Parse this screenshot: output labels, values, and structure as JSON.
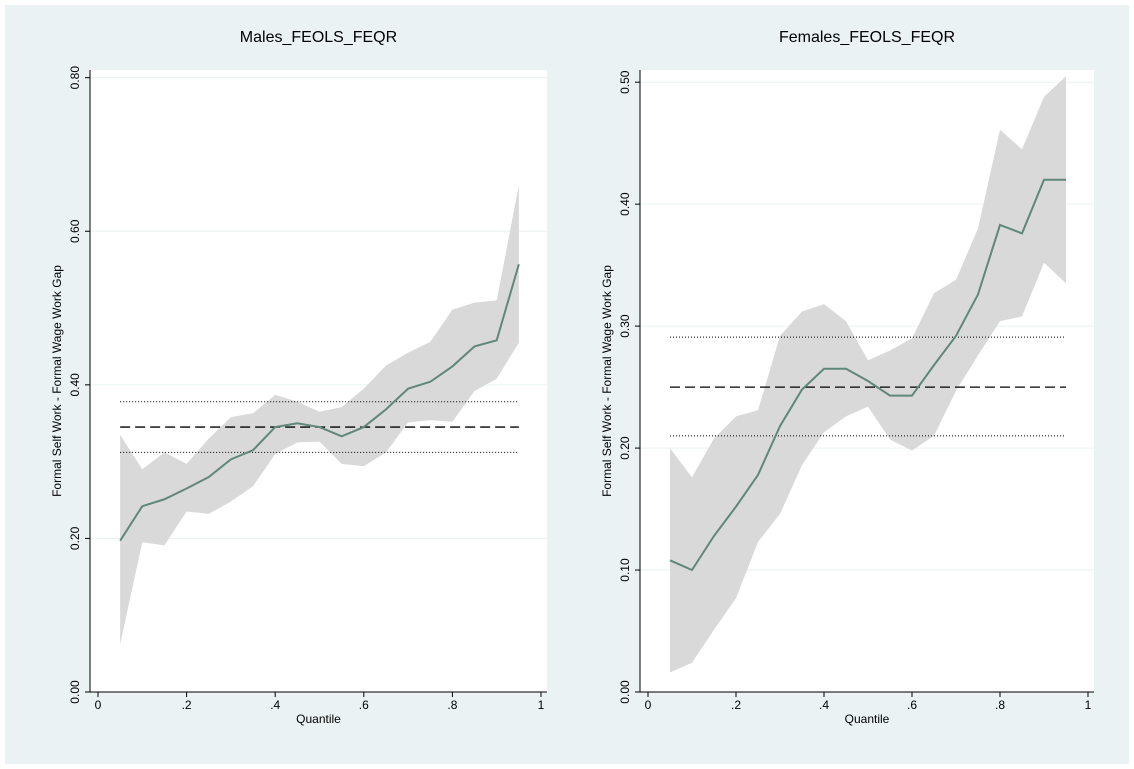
{
  "chart_data": [
    {
      "type": "quantile",
      "title": "Males_FEOLS_FEQR",
      "x_label": "Quantile",
      "y_label": "Formal Self Work - Formal Wage Work Gap",
      "x": [
        0.05,
        0.1,
        0.15,
        0.2,
        0.25,
        0.3,
        0.35,
        0.4,
        0.45,
        0.5,
        0.55,
        0.6,
        0.65,
        0.7,
        0.75,
        0.8,
        0.85,
        0.9,
        0.95
      ],
      "values": [
        0.197,
        0.242,
        0.251,
        0.265,
        0.28,
        0.303,
        0.315,
        0.345,
        0.35,
        0.345,
        0.333,
        0.345,
        0.368,
        0.395,
        0.404,
        0.424,
        0.45,
        0.458,
        0.557
      ],
      "ci_upper": [
        0.335,
        0.29,
        0.312,
        0.297,
        0.33,
        0.358,
        0.363,
        0.387,
        0.378,
        0.365,
        0.371,
        0.395,
        0.425,
        0.442,
        0.456,
        0.498,
        0.507,
        0.51,
        0.66
      ],
      "ci_lower": [
        0.062,
        0.195,
        0.191,
        0.235,
        0.232,
        0.248,
        0.268,
        0.31,
        0.325,
        0.326,
        0.297,
        0.294,
        0.312,
        0.351,
        0.354,
        0.352,
        0.392,
        0.408,
        0.455
      ],
      "ols": 0.345,
      "ols_lower": 0.312,
      "ols_upper": 0.378,
      "color": "#5f8878",
      "band_color": "#d9d9d9",
      "xlim": [
        0,
        1
      ],
      "ylim": [
        0,
        0.81
      ],
      "xticks": [
        0,
        {
          "value": 0.2,
          "label": ".2"
        },
        {
          "value": 0.4,
          "label": ".4"
        },
        {
          "value": 0.6,
          "label": ".6"
        },
        {
          "value": 0.8,
          "label": ".8"
        },
        1
      ],
      "yticks": [
        {
          "value": 0,
          "label": "0.00"
        },
        {
          "value": 0.2,
          "label": "0.20"
        },
        {
          "value": 0.4,
          "label": "0.40"
        },
        {
          "value": 0.6,
          "label": "0.60"
        },
        {
          "value": 0.8,
          "label": "0.80"
        }
      ],
      "grid": true
    },
    {
      "type": "quantile",
      "title": "Females_FEOLS_FEQR",
      "x_label": "Quantile",
      "y_label": "Formal Self Work - Formal Wage Work Gap",
      "x": [
        0.05,
        0.1,
        0.15,
        0.2,
        0.25,
        0.3,
        0.35,
        0.4,
        0.45,
        0.5,
        0.55,
        0.6,
        0.65,
        0.7,
        0.75,
        0.8,
        0.85,
        0.9,
        0.95
      ],
      "values": [
        0.108,
        0.1,
        0.128,
        0.152,
        0.178,
        0.218,
        0.248,
        0.265,
        0.265,
        0.255,
        0.243,
        0.243,
        0.268,
        0.292,
        0.326,
        0.383,
        0.376,
        0.42,
        0.42
      ],
      "ci_upper": [
        0.2,
        0.176,
        0.208,
        0.226,
        0.231,
        0.292,
        0.312,
        0.318,
        0.304,
        0.272,
        0.28,
        0.29,
        0.327,
        0.338,
        0.38,
        0.461,
        0.445,
        0.488,
        0.505
      ],
      "ci_lower": [
        0.016,
        0.024,
        0.051,
        0.077,
        0.123,
        0.146,
        0.186,
        0.213,
        0.226,
        0.234,
        0.207,
        0.198,
        0.21,
        0.247,
        0.276,
        0.304,
        0.308,
        0.352,
        0.335
      ],
      "ols": 0.25,
      "ols_lower": 0.21,
      "ols_upper": 0.291,
      "color": "#5f8878",
      "band_color": "#d9d9d9",
      "xlim": [
        0,
        1
      ],
      "ylim": [
        0,
        0.51
      ],
      "xticks": [
        0,
        {
          "value": 0.2,
          "label": ".2"
        },
        {
          "value": 0.4,
          "label": ".4"
        },
        {
          "value": 0.6,
          "label": ".6"
        },
        {
          "value": 0.8,
          "label": ".8"
        },
        1
      ],
      "yticks": [
        {
          "value": 0,
          "label": "0.00"
        },
        {
          "value": 0.1,
          "label": "0.10"
        },
        {
          "value": 0.2,
          "label": "0.20"
        },
        {
          "value": 0.3,
          "label": "0.30"
        },
        {
          "value": 0.4,
          "label": "0.40"
        },
        {
          "value": 0.5,
          "label": "0.50"
        }
      ],
      "grid": true
    }
  ]
}
